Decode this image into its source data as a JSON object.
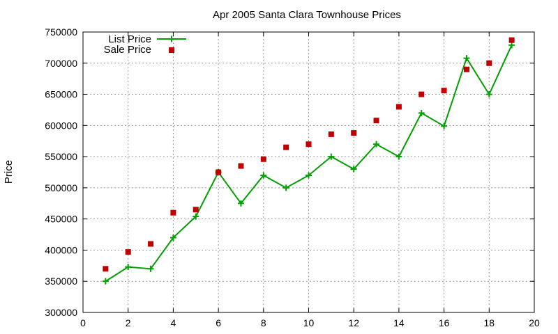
{
  "chart_data": {
    "type": "line",
    "title": "Apr 2005 Santa Clara Townhouse Prices",
    "xlabel": "",
    "ylabel": "Price",
    "xlim": [
      0,
      20
    ],
    "ylim": [
      300000,
      750000
    ],
    "xticks": [
      0,
      2,
      4,
      6,
      8,
      10,
      12,
      14,
      16,
      18,
      20
    ],
    "yticks": [
      300000,
      350000,
      400000,
      450000,
      500000,
      550000,
      600000,
      650000,
      700000,
      750000
    ],
    "grid": true,
    "legend_position": "top-left",
    "x": [
      1,
      2,
      3,
      4,
      5,
      6,
      7,
      8,
      9,
      10,
      11,
      12,
      13,
      14,
      15,
      16,
      17,
      18,
      19
    ],
    "series": [
      {
        "name": "List Price",
        "style": "lines+crosses",
        "color": "#00a000",
        "values": [
          350000,
          373000,
          370000,
          420000,
          454000,
          525000,
          475000,
          520000,
          500000,
          520000,
          550000,
          530000,
          570000,
          550000,
          620000,
          599000,
          708000,
          650000,
          729000
        ]
      },
      {
        "name": "Sale Price",
        "style": "squares",
        "color": "#c00000",
        "values": [
          370000,
          397000,
          410000,
          460000,
          465000,
          525000,
          535000,
          546000,
          565000,
          570000,
          586000,
          588000,
          608000,
          630000,
          650000,
          656000,
          690000,
          700000,
          737000
        ]
      }
    ]
  }
}
